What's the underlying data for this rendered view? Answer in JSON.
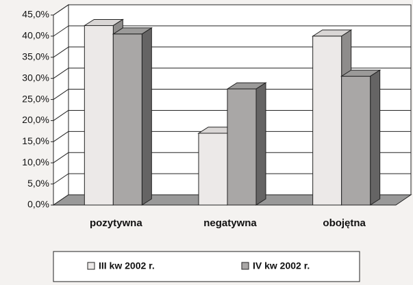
{
  "chart_data": {
    "type": "bar",
    "categories": [
      "pozytywna",
      "negatywna",
      "obojętna"
    ],
    "series": [
      {
        "name": "III kw 2002 r.",
        "color": "#ece9e8",
        "values": [
          42.5,
          17,
          40
        ]
      },
      {
        "name": "IV kw 2002 r.",
        "color": "#a9a7a6",
        "values": [
          40.5,
          27.5,
          30.5
        ]
      }
    ],
    "ylim": [
      0,
      45
    ],
    "yticks": [
      {
        "value": 0,
        "label": "0,0%"
      },
      {
        "value": 5,
        "label": "5,0%"
      },
      {
        "value": 10,
        "label": "10,0%"
      },
      {
        "value": 15,
        "label": "15,0%"
      },
      {
        "value": 20,
        "label": "20,0%"
      },
      {
        "value": 25,
        "label": "25,0%"
      },
      {
        "value": 30,
        "label": "30,0%"
      },
      {
        "value": 35,
        "label": "35,0%"
      },
      {
        "value": 40,
        "label": "40,0%"
      },
      {
        "value": 45,
        "label": "45,0%"
      }
    ],
    "grid": true
  }
}
